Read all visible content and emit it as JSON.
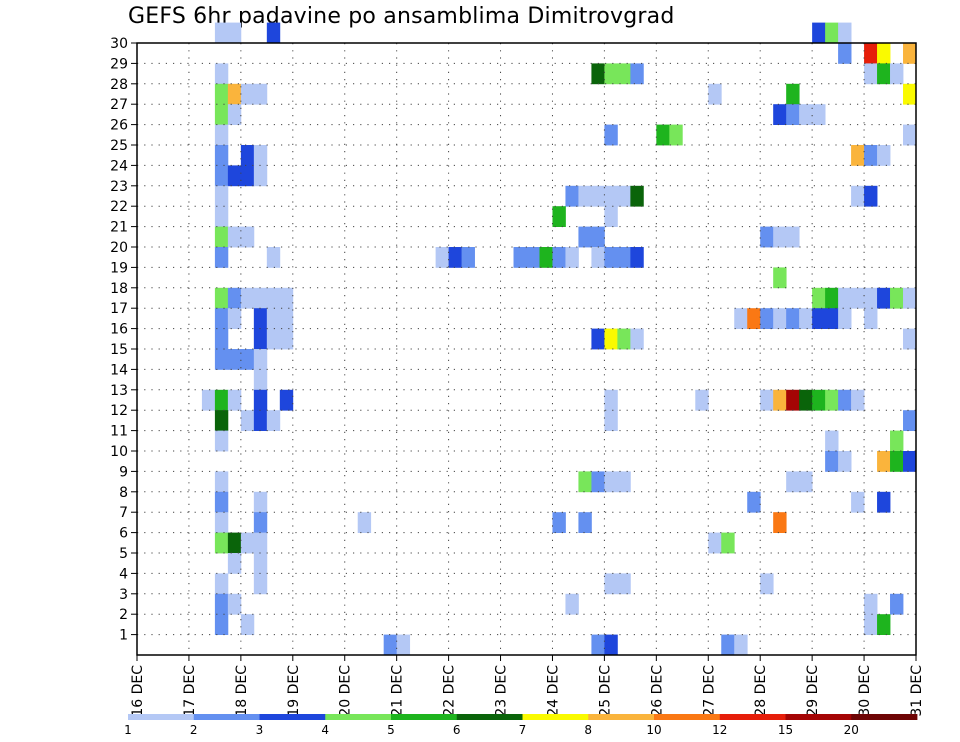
{
  "chart_data": {
    "type": "heatmap",
    "title": "GEFS 6hr padavine po ansamblima Dimitrovgrad",
    "x_tick_labels": [
      "16 DEC",
      "17 DEC",
      "18 DEC",
      "19 DEC",
      "20 DEC",
      "21 DEC",
      "22 DEC",
      "23 DEC",
      "24 DEC",
      "25 DEC",
      "26 DEC",
      "27 DEC",
      "28 DEC",
      "29 DEC",
      "30 DEC",
      "31 DEC"
    ],
    "y_tick_labels": [
      "1",
      "2",
      "3",
      "4",
      "5",
      "6",
      "7",
      "8",
      "9",
      "10",
      "11",
      "12",
      "13",
      "14",
      "15",
      "16",
      "17",
      "18",
      "19",
      "20",
      "21",
      "22",
      "23",
      "24",
      "25",
      "26",
      "27",
      "28",
      "29",
      "30"
    ],
    "x_range": [
      "16 DEC",
      "31 DEC"
    ],
    "y_range": [
      0,
      30
    ],
    "grid": true,
    "colorbar": {
      "position": "bottom",
      "boundaries": [
        "1",
        "2",
        "3",
        "4",
        "5",
        "6",
        "7",
        "8",
        "10",
        "12",
        "15",
        "20"
      ],
      "colors": [
        "#b4c8f5",
        "#6490f0",
        "#1e46dc",
        "#78e65a",
        "#1eb41e",
        "#0a640a",
        "#fafa00",
        "#fab43c",
        "#fa7814",
        "#e61e0a",
        "#a50505",
        "#6e0505"
      ]
    },
    "cells": [
      [
        30,
        17.5,
        0
      ],
      [
        30,
        17.75,
        0
      ],
      [
        30,
        18.5,
        2
      ],
      [
        30,
        29.0,
        2
      ],
      [
        30,
        29.25,
        3
      ],
      [
        30,
        29.5,
        0
      ],
      [
        29,
        29.5,
        1
      ],
      [
        29,
        30.0,
        9
      ],
      [
        29,
        30.25,
        6
      ],
      [
        29,
        30.75,
        7
      ],
      [
        28,
        17.5,
        0
      ],
      [
        28,
        24.75,
        5
      ],
      [
        28,
        25.0,
        3
      ],
      [
        28,
        25.25,
        3
      ],
      [
        28,
        25.5,
        1
      ],
      [
        28,
        30.0,
        0
      ],
      [
        28,
        30.25,
        4
      ],
      [
        28,
        30.5,
        0
      ],
      [
        27,
        17.5,
        3
      ],
      [
        27,
        17.75,
        7
      ],
      [
        27,
        18.0,
        0
      ],
      [
        27,
        18.25,
        0
      ],
      [
        27,
        27.0,
        0
      ],
      [
        27,
        28.5,
        4
      ],
      [
        27,
        30.75,
        6
      ],
      [
        26,
        17.5,
        3
      ],
      [
        26,
        17.75,
        0
      ],
      [
        26,
        28.25,
        2
      ],
      [
        26,
        28.5,
        1
      ],
      [
        26,
        28.75,
        0
      ],
      [
        26,
        29.0,
        0
      ],
      [
        25,
        17.5,
        0
      ],
      [
        25,
        25.0,
        1
      ],
      [
        25,
        26.0,
        4
      ],
      [
        25,
        26.25,
        3
      ],
      [
        25,
        30.75,
        0
      ],
      [
        24,
        17.5,
        1
      ],
      [
        24,
        18.0,
        2
      ],
      [
        24,
        18.25,
        0
      ],
      [
        24,
        29.75,
        7
      ],
      [
        24,
        30.0,
        1
      ],
      [
        24,
        30.25,
        0
      ],
      [
        23,
        17.5,
        1
      ],
      [
        23,
        17.75,
        2
      ],
      [
        23,
        18.0,
        2
      ],
      [
        23,
        18.25,
        0
      ],
      [
        22,
        17.5,
        0
      ],
      [
        22,
        24.25,
        1
      ],
      [
        22,
        24.5,
        0
      ],
      [
        22,
        24.75,
        0
      ],
      [
        22,
        25.0,
        0
      ],
      [
        22,
        25.25,
        0
      ],
      [
        22,
        25.5,
        5
      ],
      [
        22,
        29.75,
        0
      ],
      [
        22,
        30.0,
        2
      ],
      [
        21,
        17.5,
        0
      ],
      [
        21,
        24.0,
        4
      ],
      [
        21,
        25.0,
        0
      ],
      [
        20,
        17.5,
        3
      ],
      [
        20,
        17.75,
        0
      ],
      [
        20,
        18.0,
        0
      ],
      [
        20,
        24.5,
        1
      ],
      [
        20,
        24.75,
        1
      ],
      [
        20,
        28.0,
        1
      ],
      [
        20,
        28.25,
        0
      ],
      [
        20,
        28.5,
        0
      ],
      [
        19,
        17.5,
        1
      ],
      [
        19,
        18.5,
        0
      ],
      [
        19,
        21.75,
        0
      ],
      [
        19,
        22.0,
        2
      ],
      [
        19,
        22.25,
        1
      ],
      [
        19,
        23.25,
        1
      ],
      [
        19,
        23.5,
        1
      ],
      [
        19,
        23.75,
        4
      ],
      [
        19,
        24.0,
        1
      ],
      [
        19,
        24.25,
        0
      ],
      [
        19,
        24.75,
        0
      ],
      [
        19,
        25.0,
        1
      ],
      [
        19,
        25.25,
        1
      ],
      [
        19,
        25.5,
        2
      ],
      [
        18,
        28.25,
        3
      ],
      [
        17,
        17.5,
        3
      ],
      [
        17,
        17.75,
        1
      ],
      [
        17,
        18.0,
        0
      ],
      [
        17,
        18.25,
        0
      ],
      [
        17,
        18.5,
        0
      ],
      [
        17,
        18.75,
        0
      ],
      [
        17,
        29.0,
        3
      ],
      [
        17,
        29.25,
        4
      ],
      [
        17,
        29.5,
        0
      ],
      [
        17,
        29.75,
        0
      ],
      [
        17,
        30.0,
        0
      ],
      [
        17,
        30.25,
        2
      ],
      [
        17,
        30.5,
        3
      ],
      [
        17,
        30.75,
        0
      ],
      [
        16,
        17.5,
        1
      ],
      [
        16,
        17.75,
        0
      ],
      [
        16,
        18.25,
        2
      ],
      [
        16,
        18.5,
        0
      ],
      [
        16,
        18.75,
        0
      ],
      [
        16,
        27.5,
        0
      ],
      [
        16,
        27.75,
        8
      ],
      [
        16,
        28.0,
        1
      ],
      [
        16,
        28.25,
        0
      ],
      [
        16,
        28.5,
        1
      ],
      [
        16,
        28.75,
        0
      ],
      [
        16,
        29.0,
        2
      ],
      [
        16,
        29.25,
        2
      ],
      [
        16,
        29.5,
        0
      ],
      [
        16,
        30.0,
        0
      ],
      [
        15,
        17.5,
        1
      ],
      [
        15,
        18.25,
        2
      ],
      [
        15,
        18.5,
        0
      ],
      [
        15,
        18.75,
        0
      ],
      [
        15,
        24.75,
        2
      ],
      [
        15,
        25.0,
        6
      ],
      [
        15,
        25.25,
        3
      ],
      [
        15,
        25.5,
        0
      ],
      [
        15,
        30.75,
        0
      ],
      [
        14,
        17.5,
        1
      ],
      [
        14,
        17.75,
        1
      ],
      [
        14,
        18.0,
        1
      ],
      [
        14,
        18.25,
        0
      ],
      [
        13,
        18.25,
        0
      ],
      [
        12,
        17.25,
        0
      ],
      [
        12,
        17.5,
        4
      ],
      [
        12,
        17.75,
        0
      ],
      [
        12,
        18.25,
        2
      ],
      [
        12,
        18.75,
        2
      ],
      [
        12,
        25.0,
        0
      ],
      [
        12,
        26.75,
        0
      ],
      [
        12,
        28.0,
        0
      ],
      [
        12,
        28.25,
        7
      ],
      [
        12,
        28.5,
        10
      ],
      [
        12,
        28.75,
        5
      ],
      [
        12,
        29.0,
        4
      ],
      [
        12,
        29.25,
        3
      ],
      [
        12,
        29.5,
        1
      ],
      [
        12,
        29.75,
        0
      ],
      [
        11,
        17.5,
        5
      ],
      [
        11,
        18.0,
        0
      ],
      [
        11,
        18.25,
        2
      ],
      [
        11,
        18.5,
        0
      ],
      [
        11,
        25.0,
        0
      ],
      [
        11,
        30.75,
        1
      ],
      [
        10,
        17.5,
        0
      ],
      [
        10,
        29.25,
        0
      ],
      [
        10,
        30.5,
        3
      ],
      [
        9,
        29.25,
        1
      ],
      [
        9,
        29.5,
        0
      ],
      [
        9,
        30.25,
        7
      ],
      [
        9,
        30.5,
        4
      ],
      [
        9,
        30.75,
        2
      ],
      [
        8,
        17.5,
        0
      ],
      [
        8,
        24.5,
        3
      ],
      [
        8,
        24.75,
        1
      ],
      [
        8,
        25.0,
        0
      ],
      [
        8,
        25.25,
        0
      ],
      [
        8,
        28.5,
        0
      ],
      [
        8,
        28.75,
        0
      ],
      [
        7,
        17.5,
        1
      ],
      [
        7,
        18.25,
        0
      ],
      [
        7,
        27.75,
        1
      ],
      [
        7,
        29.75,
        0
      ],
      [
        7,
        30.25,
        2
      ],
      [
        6,
        17.5,
        0
      ],
      [
        6,
        18.25,
        1
      ],
      [
        6,
        20.25,
        0
      ],
      [
        6,
        24.0,
        1
      ],
      [
        6,
        24.5,
        1
      ],
      [
        6,
        28.25,
        8
      ],
      [
        5,
        17.5,
        3
      ],
      [
        5,
        17.75,
        5
      ],
      [
        5,
        18.0,
        0
      ],
      [
        5,
        18.25,
        0
      ],
      [
        5,
        27.0,
        0
      ],
      [
        5,
        27.25,
        3
      ],
      [
        4,
        17.75,
        0
      ],
      [
        4,
        18.25,
        0
      ],
      [
        3,
        17.5,
        0
      ],
      [
        3,
        18.25,
        0
      ],
      [
        3,
        25.0,
        0
      ],
      [
        3,
        25.25,
        0
      ],
      [
        3,
        28.0,
        0
      ],
      [
        2,
        17.5,
        1
      ],
      [
        2,
        17.75,
        0
      ],
      [
        2,
        24.25,
        0
      ],
      [
        2,
        30.0,
        0
      ],
      [
        2,
        30.5,
        1
      ],
      [
        1,
        17.5,
        1
      ],
      [
        1,
        18.0,
        0
      ],
      [
        1,
        30.0,
        0
      ],
      [
        1,
        30.25,
        4
      ],
      [
        0,
        20.75,
        1
      ],
      [
        0,
        21.0,
        0
      ],
      [
        0,
        24.75,
        1
      ],
      [
        0,
        25.0,
        2
      ],
      [
        0,
        27.25,
        1
      ],
      [
        0,
        27.5,
        0
      ]
    ]
  }
}
